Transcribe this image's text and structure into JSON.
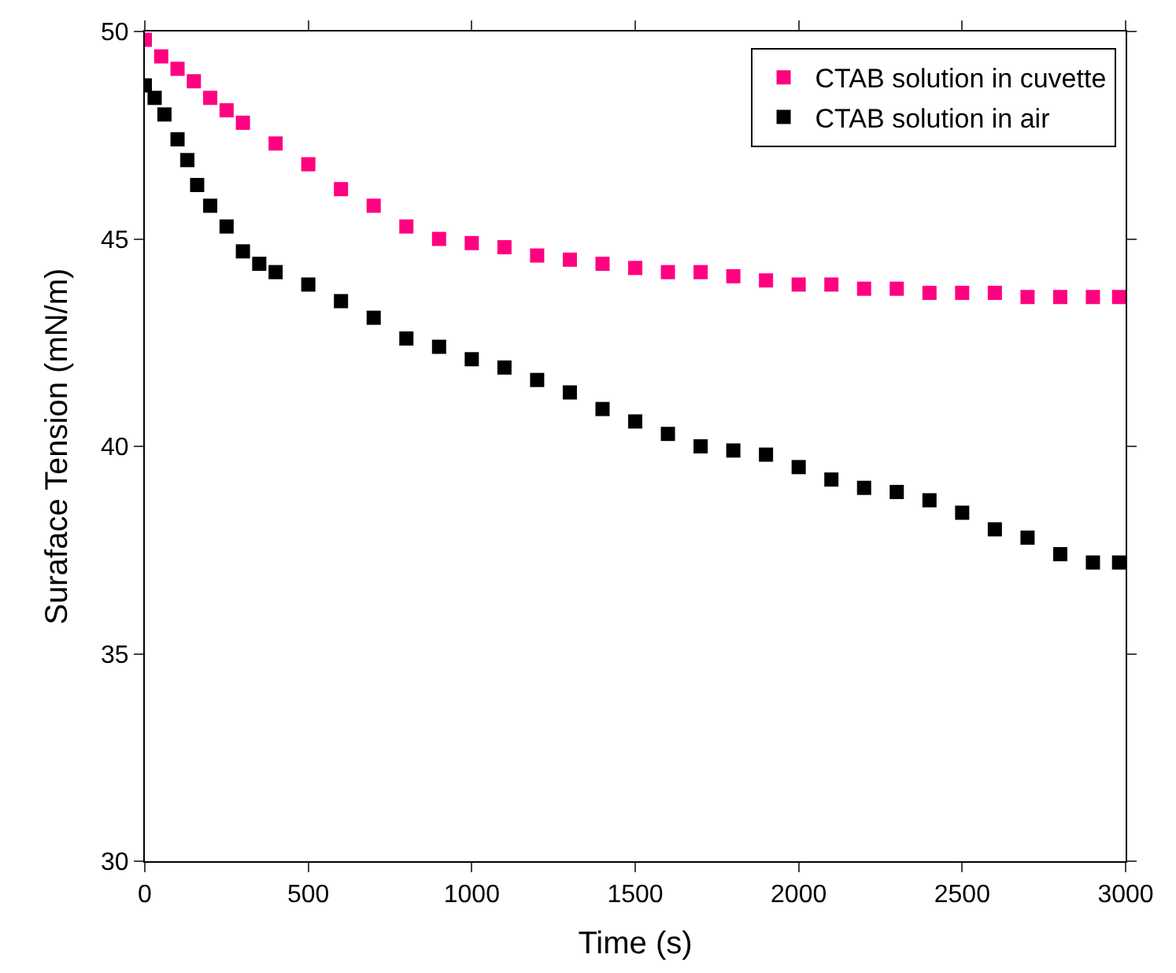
{
  "chart_data": {
    "type": "scatter",
    "xlabel": "Time (s)",
    "ylabel": "Suraface Tension (mN/m)",
    "xlim": [
      0,
      3000
    ],
    "xticks": [
      0,
      500,
      1000,
      1500,
      2000,
      2500,
      3000
    ],
    "ylim": [
      30,
      50
    ],
    "yticks": [
      30,
      35,
      40,
      45,
      50
    ],
    "grid": false,
    "legend": "top right",
    "marker": "square",
    "series": [
      {
        "name": "CTAB solution in cuvette",
        "color": "#ff0080",
        "x": [
          0,
          50,
          100,
          150,
          200,
          250,
          300,
          400,
          500,
          600,
          700,
          800,
          900,
          1000,
          1100,
          1200,
          1300,
          1400,
          1500,
          1600,
          1700,
          1800,
          1900,
          2000,
          2100,
          2200,
          2300,
          2400,
          2500,
          2600,
          2700,
          2800,
          2900,
          2980
        ],
        "values": [
          49.8,
          49.4,
          49.1,
          48.8,
          48.4,
          48.1,
          47.8,
          47.3,
          46.8,
          46.2,
          45.8,
          45.3,
          45.0,
          44.9,
          44.8,
          44.6,
          44.5,
          44.4,
          44.3,
          44.2,
          44.2,
          44.1,
          44.0,
          43.9,
          43.9,
          43.8,
          43.8,
          43.7,
          43.7,
          43.7,
          43.6,
          43.6,
          43.6,
          43.6
        ]
      },
      {
        "name": "CTAB solution in air",
        "color": "#000000",
        "x": [
          0,
          30,
          60,
          100,
          130,
          160,
          200,
          250,
          300,
          350,
          400,
          500,
          600,
          700,
          800,
          900,
          1000,
          1100,
          1200,
          1300,
          1400,
          1500,
          1600,
          1700,
          1800,
          1900,
          2000,
          2100,
          2200,
          2300,
          2400,
          2500,
          2600,
          2700,
          2800,
          2900,
          2980
        ],
        "values": [
          48.7,
          48.4,
          48.0,
          47.4,
          46.9,
          46.3,
          45.8,
          45.3,
          44.7,
          44.4,
          44.2,
          43.9,
          43.5,
          43.1,
          42.6,
          42.4,
          42.1,
          41.9,
          41.6,
          41.3,
          40.9,
          40.6,
          40.3,
          40.0,
          39.9,
          39.8,
          39.5,
          39.2,
          39.0,
          38.9,
          38.7,
          38.4,
          38.0,
          37.8,
          37.4,
          37.2,
          37.2
        ]
      }
    ]
  }
}
